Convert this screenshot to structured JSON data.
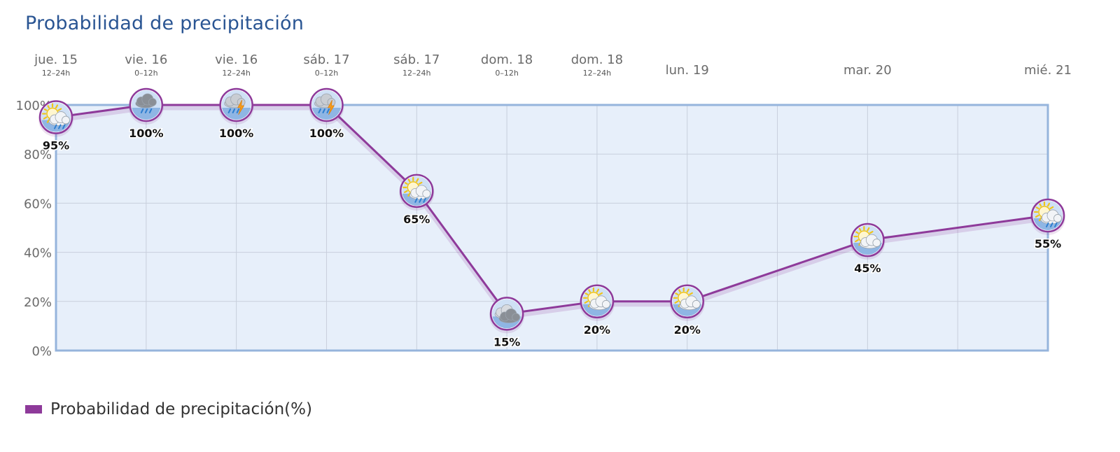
{
  "title": "Probabilidad de precipitación",
  "legend": {
    "label": "Probabilidad de precipitación(%)"
  },
  "colors": {
    "title": "#2a5593",
    "series": "#8e3a9a",
    "plot_bg": "#e7effa",
    "plot_border": "#96b4dc",
    "grid": "#c8cfdc"
  },
  "chart_data": {
    "type": "line",
    "title": "Probabilidad de precipitación",
    "categories": [
      {
        "day": "jue. 15",
        "period": "12–24h"
      },
      {
        "day": "vie. 16",
        "period": "0–12h"
      },
      {
        "day": "vie. 16",
        "period": "12–24h"
      },
      {
        "day": "sáb. 17",
        "period": "0–12h"
      },
      {
        "day": "sáb. 17",
        "period": "12–24h"
      },
      {
        "day": "dom. 18",
        "period": "0–12h"
      },
      {
        "day": "dom. 18",
        "period": "12–24h"
      },
      {
        "day": "lun. 19",
        "period": ""
      },
      {
        "day": "",
        "period": ""
      },
      {
        "day": "mar. 20",
        "period": ""
      },
      {
        "day": "",
        "period": ""
      },
      {
        "day": "mié. 21",
        "period": ""
      }
    ],
    "series": [
      {
        "name": "Probabilidad de precipitación(%)",
        "points": [
          {
            "x": 0,
            "value": 95,
            "label": "95%",
            "icon": "sun-cloud-rain-icon"
          },
          {
            "x": 1,
            "value": 100,
            "label": "100%",
            "icon": "cloud-rain-icon"
          },
          {
            "x": 2,
            "value": 100,
            "label": "100%",
            "icon": "cloud-storm-icon"
          },
          {
            "x": 3,
            "value": 100,
            "label": "100%",
            "icon": "cloud-storm-icon"
          },
          {
            "x": 4,
            "value": 65,
            "label": "65%",
            "icon": "sun-cloud-rain-icon"
          },
          {
            "x": 5,
            "value": 15,
            "label": "15%",
            "icon": "cloud-icon"
          },
          {
            "x": 6,
            "value": 20,
            "label": "20%",
            "icon": "sun-cloud-icon"
          },
          {
            "x": 7,
            "value": 20,
            "label": "20%",
            "icon": "sun-cloud-icon"
          },
          {
            "x": 9,
            "value": 45,
            "label": "45%",
            "icon": "sun-cloud-icon"
          },
          {
            "x": 11,
            "value": 55,
            "label": "55%",
            "icon": "sun-cloud-rain-icon"
          }
        ]
      }
    ],
    "y_ticks": [
      "0%",
      "20%",
      "40%",
      "60%",
      "80%",
      "100%"
    ],
    "ylim": [
      0,
      100
    ],
    "grid": true,
    "legend_position": "bottom-left"
  }
}
